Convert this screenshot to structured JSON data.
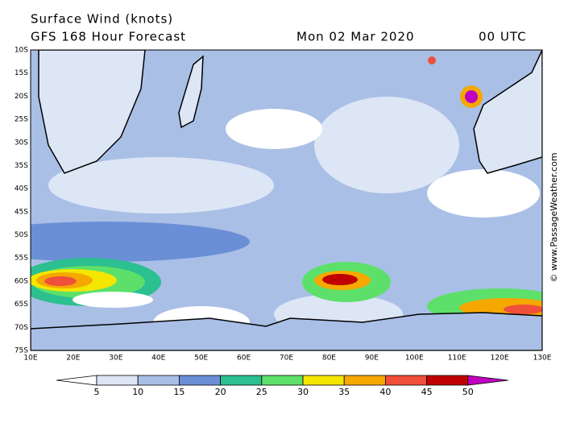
{
  "header": {
    "title": "Surface Wind (knots)",
    "subtitle": "GFS 168 Hour Forecast",
    "date": "Mon 02 Mar 2020",
    "time": "00 UTC"
  },
  "map": {
    "lat_labels": [
      "10S",
      "15S",
      "20S",
      "25S",
      "30S",
      "35S",
      "40S",
      "45S",
      "50S",
      "55S",
      "60S",
      "65S",
      "70S",
      "75S"
    ],
    "lon_labels": [
      "10E",
      "20E",
      "30E",
      "40E",
      "50E",
      "60E",
      "70E",
      "80E",
      "90E",
      "100E",
      "110E",
      "120E",
      "130E"
    ]
  },
  "colorbar": {
    "labels": [
      "5",
      "10",
      "15",
      "20",
      "25",
      "30",
      "35",
      "40",
      "45",
      "50"
    ],
    "colors": [
      "#ffffff",
      "#dde6f5",
      "#a9bfe6",
      "#6a8fd6",
      "#2cbf8f",
      "#5de06a",
      "#f5e600",
      "#f5a800",
      "#ef4f3b",
      "#c00000",
      "#c000c0"
    ]
  },
  "credit": "© www.PassageWeather.com"
}
